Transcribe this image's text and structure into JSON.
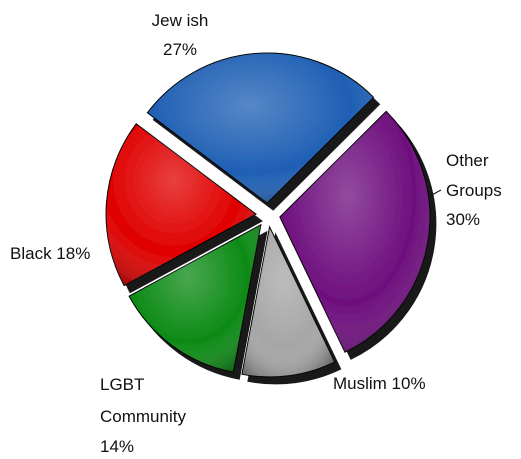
{
  "chart_data": {
    "type": "pie",
    "title": "",
    "slices": [
      {
        "name": "Jewish",
        "display_name": "Jew ish",
        "value": 27,
        "value_label": "27%",
        "color": "#1f5fb4"
      },
      {
        "name": "Other Groups",
        "display_name": "Other Groups",
        "value": 30,
        "value_label": "30%",
        "color": "#6e0f7e"
      },
      {
        "name": "Muslim",
        "display_name": "Muslim",
        "value": 10,
        "value_label": "10%",
        "color": "#a6a6a6"
      },
      {
        "name": "LGBT Community",
        "display_name": "LGBT Community",
        "value": 14,
        "value_label": "14%",
        "color": "#0d8a16"
      },
      {
        "name": "Black",
        "display_name": "Black",
        "value": 18,
        "value_label": "18%",
        "color": "#e00000"
      }
    ],
    "style": "3d-exploded"
  }
}
